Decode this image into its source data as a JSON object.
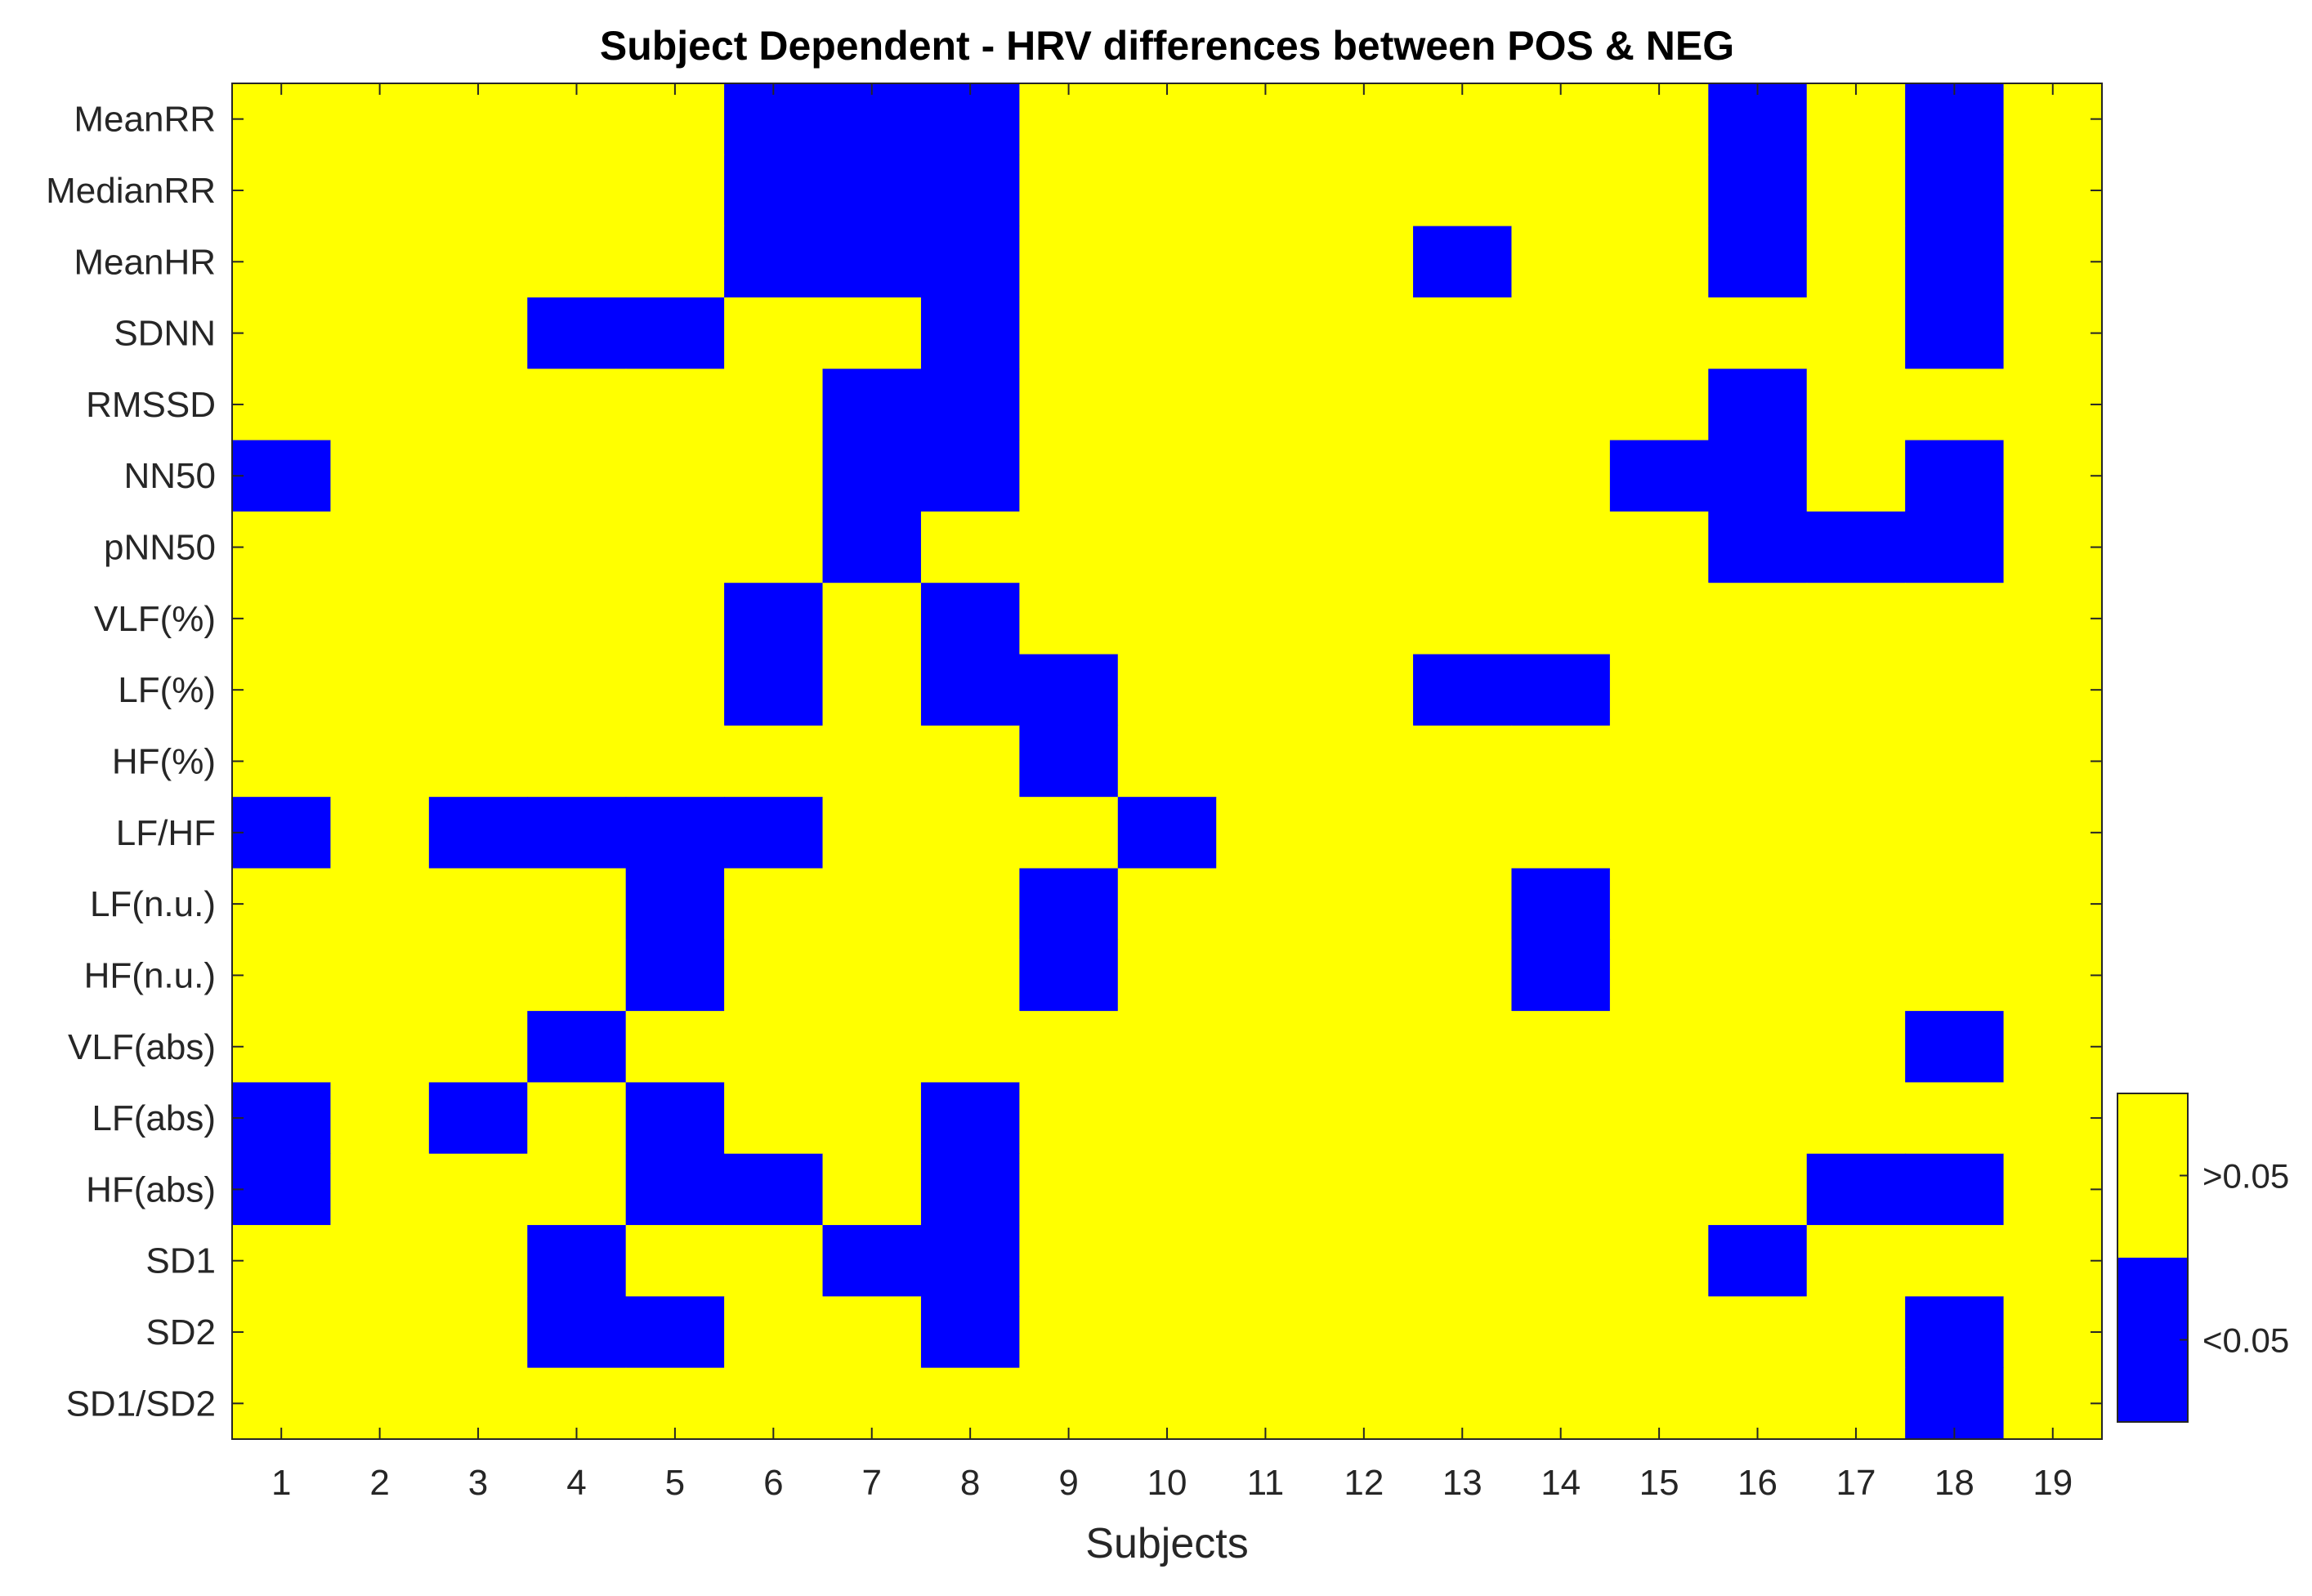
{
  "chart_data": {
    "type": "heatmap",
    "title": "Subject Dependent - HRV differences between POS & NEG",
    "xlabel": "Subjects",
    "ylabel": "",
    "x_categories": [
      "1",
      "2",
      "3",
      "4",
      "5",
      "6",
      "7",
      "8",
      "9",
      "10",
      "11",
      "12",
      "13",
      "14",
      "15",
      "16",
      "17",
      "18",
      "19"
    ],
    "y_categories": [
      "MeanRR",
      "MedianRR",
      "MeanHR",
      "SDNN",
      "RMSSD",
      "NN50",
      "pNN50",
      "VLF(%)",
      "LF(%)",
      "HF(%)",
      "LF/HF",
      "LF(n.u.)",
      "HF(n.u.)",
      "VLF(abs)",
      "LF(abs)",
      "HF(abs)",
      "SD1",
      "SD2",
      "SD1/SD2"
    ],
    "value_legend": {
      "1": ">0.05",
      "0": "<0.05"
    },
    "colors": {
      "high": "#FFFF00",
      "low": "#0000FF",
      "grid": "#262626"
    },
    "colorbar": {
      "position": "right",
      "labels": [
        ">0.05",
        "<0.05"
      ]
    },
    "matrix": [
      [
        1,
        1,
        1,
        1,
        1,
        0,
        0,
        0,
        1,
        1,
        1,
        1,
        1,
        1,
        1,
        0,
        1,
        0,
        1
      ],
      [
        1,
        1,
        1,
        1,
        1,
        0,
        0,
        0,
        1,
        1,
        1,
        1,
        1,
        1,
        1,
        0,
        1,
        0,
        1
      ],
      [
        1,
        1,
        1,
        1,
        1,
        0,
        0,
        0,
        1,
        1,
        1,
        1,
        0,
        1,
        1,
        0,
        1,
        0,
        1
      ],
      [
        1,
        1,
        1,
        0,
        0,
        1,
        1,
        0,
        1,
        1,
        1,
        1,
        1,
        1,
        1,
        1,
        1,
        0,
        1
      ],
      [
        1,
        1,
        1,
        1,
        1,
        1,
        0,
        0,
        1,
        1,
        1,
        1,
        1,
        1,
        1,
        0,
        1,
        1,
        1
      ],
      [
        0,
        1,
        1,
        1,
        1,
        1,
        0,
        0,
        1,
        1,
        1,
        1,
        1,
        1,
        0,
        0,
        1,
        0,
        1
      ],
      [
        1,
        1,
        1,
        1,
        1,
        1,
        0,
        1,
        1,
        1,
        1,
        1,
        1,
        1,
        1,
        0,
        0,
        0,
        1
      ],
      [
        1,
        1,
        1,
        1,
        1,
        0,
        1,
        0,
        1,
        1,
        1,
        1,
        1,
        1,
        1,
        1,
        1,
        1,
        1
      ],
      [
        1,
        1,
        1,
        1,
        1,
        0,
        1,
        0,
        0,
        1,
        1,
        1,
        0,
        0,
        1,
        1,
        1,
        1,
        1
      ],
      [
        1,
        1,
        1,
        1,
        1,
        1,
        1,
        1,
        0,
        1,
        1,
        1,
        1,
        1,
        1,
        1,
        1,
        1,
        1
      ],
      [
        0,
        1,
        0,
        0,
        0,
        0,
        1,
        1,
        1,
        0,
        1,
        1,
        1,
        1,
        1,
        1,
        1,
        1,
        1
      ],
      [
        1,
        1,
        1,
        1,
        0,
        1,
        1,
        1,
        0,
        1,
        1,
        1,
        1,
        0,
        1,
        1,
        1,
        1,
        1
      ],
      [
        1,
        1,
        1,
        1,
        0,
        1,
        1,
        1,
        0,
        1,
        1,
        1,
        1,
        0,
        1,
        1,
        1,
        1,
        1
      ],
      [
        1,
        1,
        1,
        0,
        1,
        1,
        1,
        1,
        1,
        1,
        1,
        1,
        1,
        1,
        1,
        1,
        1,
        0,
        1
      ],
      [
        0,
        1,
        0,
        1,
        0,
        1,
        1,
        0,
        1,
        1,
        1,
        1,
        1,
        1,
        1,
        1,
        1,
        1,
        1
      ],
      [
        0,
        1,
        1,
        1,
        0,
        0,
        1,
        0,
        1,
        1,
        1,
        1,
        1,
        1,
        1,
        1,
        0,
        0,
        1
      ],
      [
        1,
        1,
        1,
        0,
        1,
        1,
        0,
        0,
        1,
        1,
        1,
        1,
        1,
        1,
        1,
        0,
        1,
        1,
        1
      ],
      [
        1,
        1,
        1,
        0,
        0,
        1,
        1,
        0,
        1,
        1,
        1,
        1,
        1,
        1,
        1,
        1,
        1,
        0,
        1
      ],
      [
        1,
        1,
        1,
        1,
        1,
        1,
        1,
        1,
        1,
        1,
        1,
        1,
        1,
        1,
        1,
        1,
        1,
        0,
        1
      ]
    ]
  }
}
